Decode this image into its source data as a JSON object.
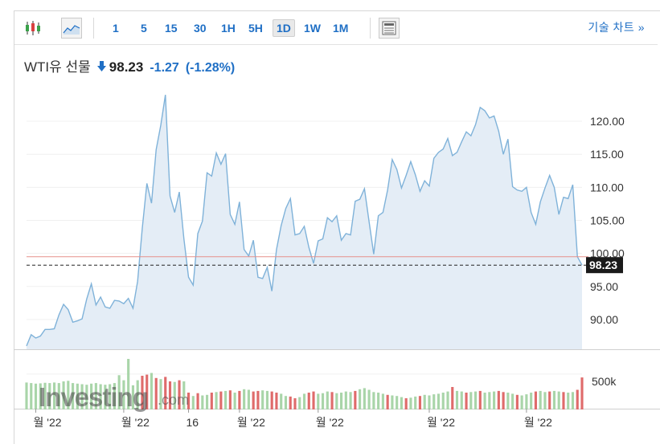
{
  "toolbar": {
    "periods": [
      "1",
      "5",
      "15",
      "30",
      "1H",
      "5H",
      "1D",
      "1W",
      "1M"
    ],
    "active_period": "1D",
    "technical_link": "기술 차트 »",
    "icons": [
      "candlestick-icon",
      "area-chart-icon",
      "table-view-icon"
    ]
  },
  "quote": {
    "name": "WTI유 선물",
    "direction_icon": "down-arrow-icon",
    "last": "98.23",
    "change": "-1.27",
    "change_pct": "(-1.28%)",
    "color_down": "#1f6fc5"
  },
  "watermark": "Investing",
  "watermark_suffix": ".com",
  "colors": {
    "line": "#7fb2d9",
    "area": "#e4edf6",
    "prev_close_line": "#e5908a",
    "vol_up": "#a9d5a9",
    "vol_down": "#df6b6b"
  },
  "chart_data": {
    "type": "area",
    "ylim": [
      85.5,
      124.5
    ],
    "yticks": [
      95,
      100,
      105,
      110,
      115,
      120
    ],
    "ytick_labels": [
      "90.00",
      "95.00",
      "100.00",
      "105.00",
      "110.00",
      "115.00",
      "120.00"
    ],
    "ytick_values": [
      90,
      95,
      100,
      105,
      110,
      115,
      120
    ],
    "x_labels": [
      "월 '22",
      "월 '22",
      "16",
      "월 '22",
      "월 '22",
      "월 '22",
      "월 '22"
    ],
    "x_label_index": [
      2,
      21,
      35,
      46,
      63,
      87,
      108
    ],
    "prev_close": 99.5,
    "last_value": 98.23,
    "last_label": "98.23",
    "volume_label": "500k",
    "volume_label_value": 500,
    "volume_max": 900,
    "values": [
      86.0,
      87.7,
      87.2,
      87.5,
      88.5,
      88.5,
      88.6,
      90.7,
      92.3,
      91.5,
      89.6,
      89.8,
      90.1,
      93.1,
      95.4,
      92.2,
      93.4,
      91.9,
      91.7,
      92.9,
      92.8,
      92.4,
      93.2,
      91.7,
      95.8,
      103.8,
      110.6,
      107.6,
      115.7,
      119.4,
      124.0,
      108.7,
      106.2,
      109.3,
      102.2,
      96.4,
      95.2,
      103.0,
      104.9,
      112.2,
      111.7,
      115.2,
      113.5,
      115.1,
      105.9,
      104.4,
      107.8,
      100.6,
      99.6,
      102.0,
      96.4,
      96.2,
      97.9,
      94.3,
      100.6,
      104.2,
      106.8,
      108.3,
      102.8,
      103.0,
      104.1,
      100.9,
      98.5,
      101.9,
      102.2,
      105.4,
      104.8,
      105.7,
      102.0,
      103.0,
      102.8,
      107.9,
      108.2,
      109.8,
      104.8,
      99.9,
      105.7,
      106.2,
      109.6,
      114.2,
      112.7,
      109.9,
      111.8,
      113.9,
      111.9,
      109.4,
      111.0,
      110.2,
      114.4,
      115.3,
      115.8,
      117.4,
      114.8,
      115.3,
      116.9,
      118.4,
      117.8,
      119.5,
      122.1,
      121.6,
      120.5,
      120.8,
      118.5,
      115.0,
      117.3,
      110.1,
      109.6,
      109.4,
      110.0,
      106.2,
      104.4,
      107.8,
      109.9,
      111.8,
      110.0,
      105.9,
      108.5,
      108.3,
      110.4,
      99.5,
      98.23
    ],
    "volume": [
      480,
      470,
      460,
      465,
      475,
      470,
      480,
      470,
      500,
      510,
      470,
      460,
      450,
      440,
      460,
      470,
      450,
      440,
      450,
      470,
      610,
      520,
      900,
      430,
      520,
      600,
      620,
      650,
      560,
      540,
      580,
      500,
      490,
      520,
      500,
      300,
      240,
      290,
      250,
      260,
      300,
      310,
      320,
      330,
      340,
      300,
      330,
      360,
      350,
      320,
      330,
      340,
      330,
      320,
      300,
      280,
      240,
      230,
      200,
      220,
      280,
      300,
      320,
      280,
      290,
      320,
      310,
      290,
      300,
      320,
      310,
      330,
      360,
      380,
      350,
      310,
      300,
      280,
      260,
      250,
      240,
      220,
      200,
      210,
      230,
      240,
      260,
      250,
      270,
      280,
      300,
      320,
      400,
      330,
      320,
      300,
      310,
      320,
      330,
      300,
      310,
      320,
      330,
      310,
      300,
      280,
      260,
      250,
      270,
      300,
      320,
      330,
      310,
      320,
      330,
      320,
      310,
      300,
      310,
      350,
      570
    ],
    "volume_up": [
      1,
      1,
      1,
      1,
      1,
      1,
      1,
      1,
      1,
      1,
      1,
      1,
      1,
      1,
      1,
      1,
      1,
      1,
      1,
      1,
      1,
      1,
      1,
      1,
      1,
      0,
      0,
      1,
      0,
      1,
      0,
      0,
      1,
      0,
      1,
      0,
      1,
      0,
      1,
      1,
      0,
      1,
      0,
      1,
      0,
      1,
      0,
      1,
      1,
      0,
      0,
      1,
      1,
      0,
      0,
      1,
      1,
      0,
      0,
      1,
      1,
      0,
      0,
      1,
      1,
      1,
      0,
      1,
      1,
      1,
      1,
      0,
      1,
      1,
      1,
      1,
      1,
      1,
      0,
      1,
      1,
      1,
      0,
      1,
      1,
      0,
      1,
      1,
      1,
      1,
      1,
      1,
      0,
      1,
      1,
      0,
      1,
      1,
      0,
      1,
      1,
      1,
      0,
      0,
      1,
      1,
      0,
      1,
      1,
      1,
      0,
      1,
      1,
      0,
      1,
      1,
      0,
      1,
      1,
      0,
      0
    ]
  }
}
